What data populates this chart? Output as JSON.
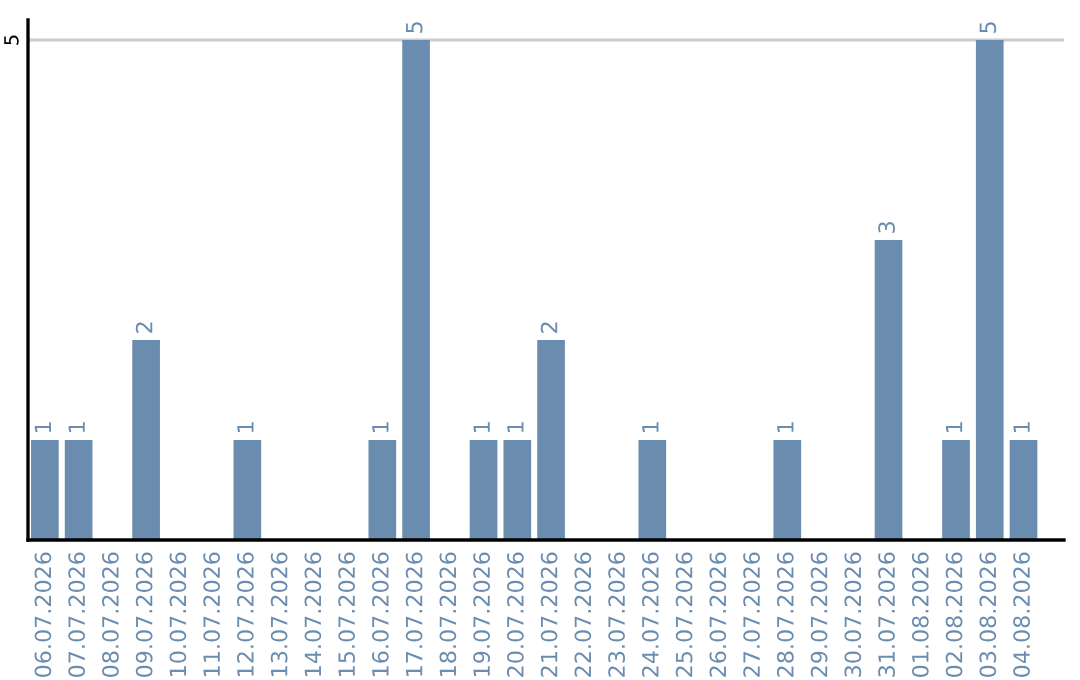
{
  "chart_data": {
    "type": "bar",
    "categories": [
      "06.07.2026",
      "07.07.2026",
      "08.07.2026",
      "09.07.2026",
      "10.07.2026",
      "11.07.2026",
      "12.07.2026",
      "13.07.2026",
      "14.07.2026",
      "15.07.2026",
      "16.07.2026",
      "17.07.2026",
      "18.07.2026",
      "19.07.2026",
      "20.07.2026",
      "21.07.2026",
      "22.07.2026",
      "23.07.2026",
      "24.07.2026",
      "25.07.2026",
      "26.07.2026",
      "27.07.2026",
      "28.07.2026",
      "29.07.2026",
      "30.07.2026",
      "31.07.2026",
      "01.08.2026",
      "02.08.2026",
      "03.08.2026",
      "04.08.2026"
    ],
    "values": [
      1,
      1,
      0,
      2,
      0,
      0,
      1,
      0,
      0,
      0,
      1,
      5,
      0,
      1,
      1,
      2,
      0,
      0,
      1,
      0,
      0,
      0,
      1,
      0,
      0,
      3,
      0,
      1,
      5,
      1
    ],
    "value_labels": [
      "1",
      "1",
      null,
      "2",
      null,
      null,
      "1",
      null,
      null,
      null,
      "1",
      "5",
      null,
      "1",
      "1",
      "2",
      null,
      null,
      "1",
      null,
      null,
      null,
      "1",
      null,
      null,
      "3",
      null,
      "1",
      "5",
      "1"
    ],
    "color": "#6a8caf",
    "ylim": [
      0,
      5.2
    ],
    "yticks": [
      5
    ],
    "grid": "y",
    "legend": false
  }
}
